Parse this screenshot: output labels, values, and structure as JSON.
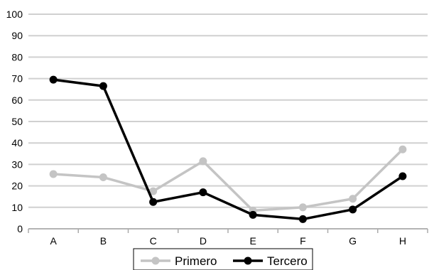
{
  "chart_data": {
    "type": "line",
    "title": "",
    "xlabel": "",
    "ylabel": "",
    "categories": [
      "A",
      "B",
      "C",
      "D",
      "E",
      "F",
      "G",
      "H"
    ],
    "ylim": [
      0,
      100
    ],
    "yticks": [
      0,
      10,
      20,
      30,
      40,
      50,
      60,
      70,
      80,
      90,
      100
    ],
    "grid": true,
    "legend_position": "bottom",
    "series": [
      {
        "name": "Primero",
        "color": "#c4c4c4",
        "values": [
          25.5,
          24,
          17.5,
          31.5,
          8.5,
          10,
          14,
          37
        ]
      },
      {
        "name": "Tercero",
        "color": "#000000",
        "values": [
          69.5,
          66.5,
          12.5,
          17,
          6.5,
          4.5,
          9,
          24.5
        ]
      }
    ]
  }
}
